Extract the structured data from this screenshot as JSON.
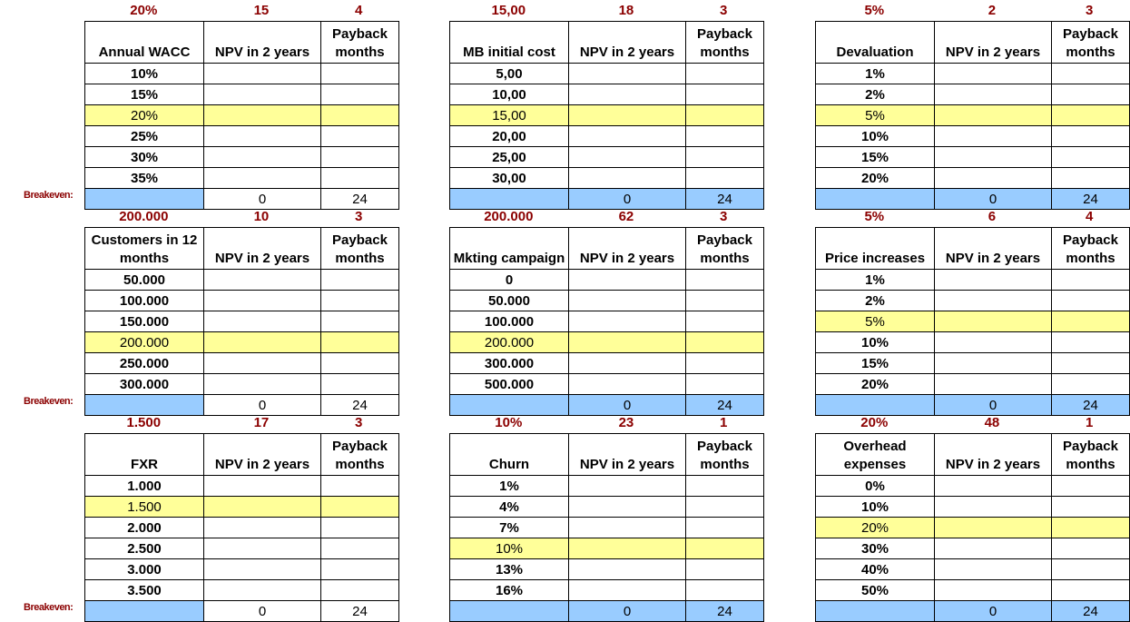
{
  "labels": {
    "npv": "NPV in 2 years",
    "payback": "Payback months",
    "breakeven": "Breakeven:"
  },
  "colors": {
    "top_values": "#8b0000",
    "active_row": "#ffff99",
    "breakeven_row": "#99ccff"
  },
  "tables": [
    {
      "id": "wacc",
      "top": [
        "20%",
        "15",
        "4"
      ],
      "header": "Annual WACC",
      "rows": [
        "10%",
        "15%",
        "20%",
        "25%",
        "30%",
        "35%"
      ],
      "active": 2,
      "breakeven": [
        "0",
        "24"
      ]
    },
    {
      "id": "mb",
      "top": [
        "15,00",
        "18",
        "3"
      ],
      "header": "MB initial cost",
      "rows": [
        "5,00",
        "10,00",
        "15,00",
        "20,00",
        "25,00",
        "30,00"
      ],
      "active": 2,
      "breakeven": [
        "0",
        "24"
      ]
    },
    {
      "id": "devaluation",
      "top": [
        "5%",
        "2",
        "3"
      ],
      "header": "Devaluation",
      "rows": [
        "1%",
        "2%",
        "5%",
        "10%",
        "15%",
        "20%"
      ],
      "active": 2,
      "breakeven": [
        "0",
        "24"
      ]
    },
    {
      "id": "customers",
      "top": [
        "200.000",
        "10",
        "3"
      ],
      "header": "Customers in 12 months",
      "rows": [
        "50.000",
        "100.000",
        "150.000",
        "200.000",
        "250.000",
        "300.000"
      ],
      "active": 3,
      "breakeven": [
        "0",
        "24"
      ]
    },
    {
      "id": "mkting",
      "top": [
        "200.000",
        "62",
        "3"
      ],
      "header": "Mkting campaign",
      "rows": [
        "0",
        "50.000",
        "100.000",
        "200.000",
        "300.000",
        "500.000"
      ],
      "active": 3,
      "breakeven": [
        "0",
        "24"
      ]
    },
    {
      "id": "price",
      "top": [
        "5%",
        "6",
        "4"
      ],
      "header": "Price increases",
      "rows": [
        "1%",
        "2%",
        "5%",
        "10%",
        "15%",
        "20%"
      ],
      "active": 2,
      "breakeven": [
        "0",
        "24"
      ]
    },
    {
      "id": "fxr",
      "top": [
        "1.500",
        "17",
        "3"
      ],
      "header": "FXR",
      "rows": [
        "1.000",
        "1.500",
        "2.000",
        "2.500",
        "3.000",
        "3.500"
      ],
      "active": 1,
      "breakeven": [
        "0",
        "24"
      ]
    },
    {
      "id": "churn",
      "top": [
        "10%",
        "23",
        "1"
      ],
      "header": "Churn",
      "rows": [
        "1%",
        "4%",
        "7%",
        "10%",
        "13%",
        "16%"
      ],
      "active": 3,
      "breakeven": [
        "0",
        "24"
      ]
    },
    {
      "id": "overhead",
      "top": [
        "20%",
        "48",
        "1"
      ],
      "header": "Overhead expenses",
      "rows": [
        "0%",
        "10%",
        "20%",
        "30%",
        "40%",
        "50%"
      ],
      "active": 2,
      "breakeven": [
        "0",
        "24"
      ]
    }
  ]
}
